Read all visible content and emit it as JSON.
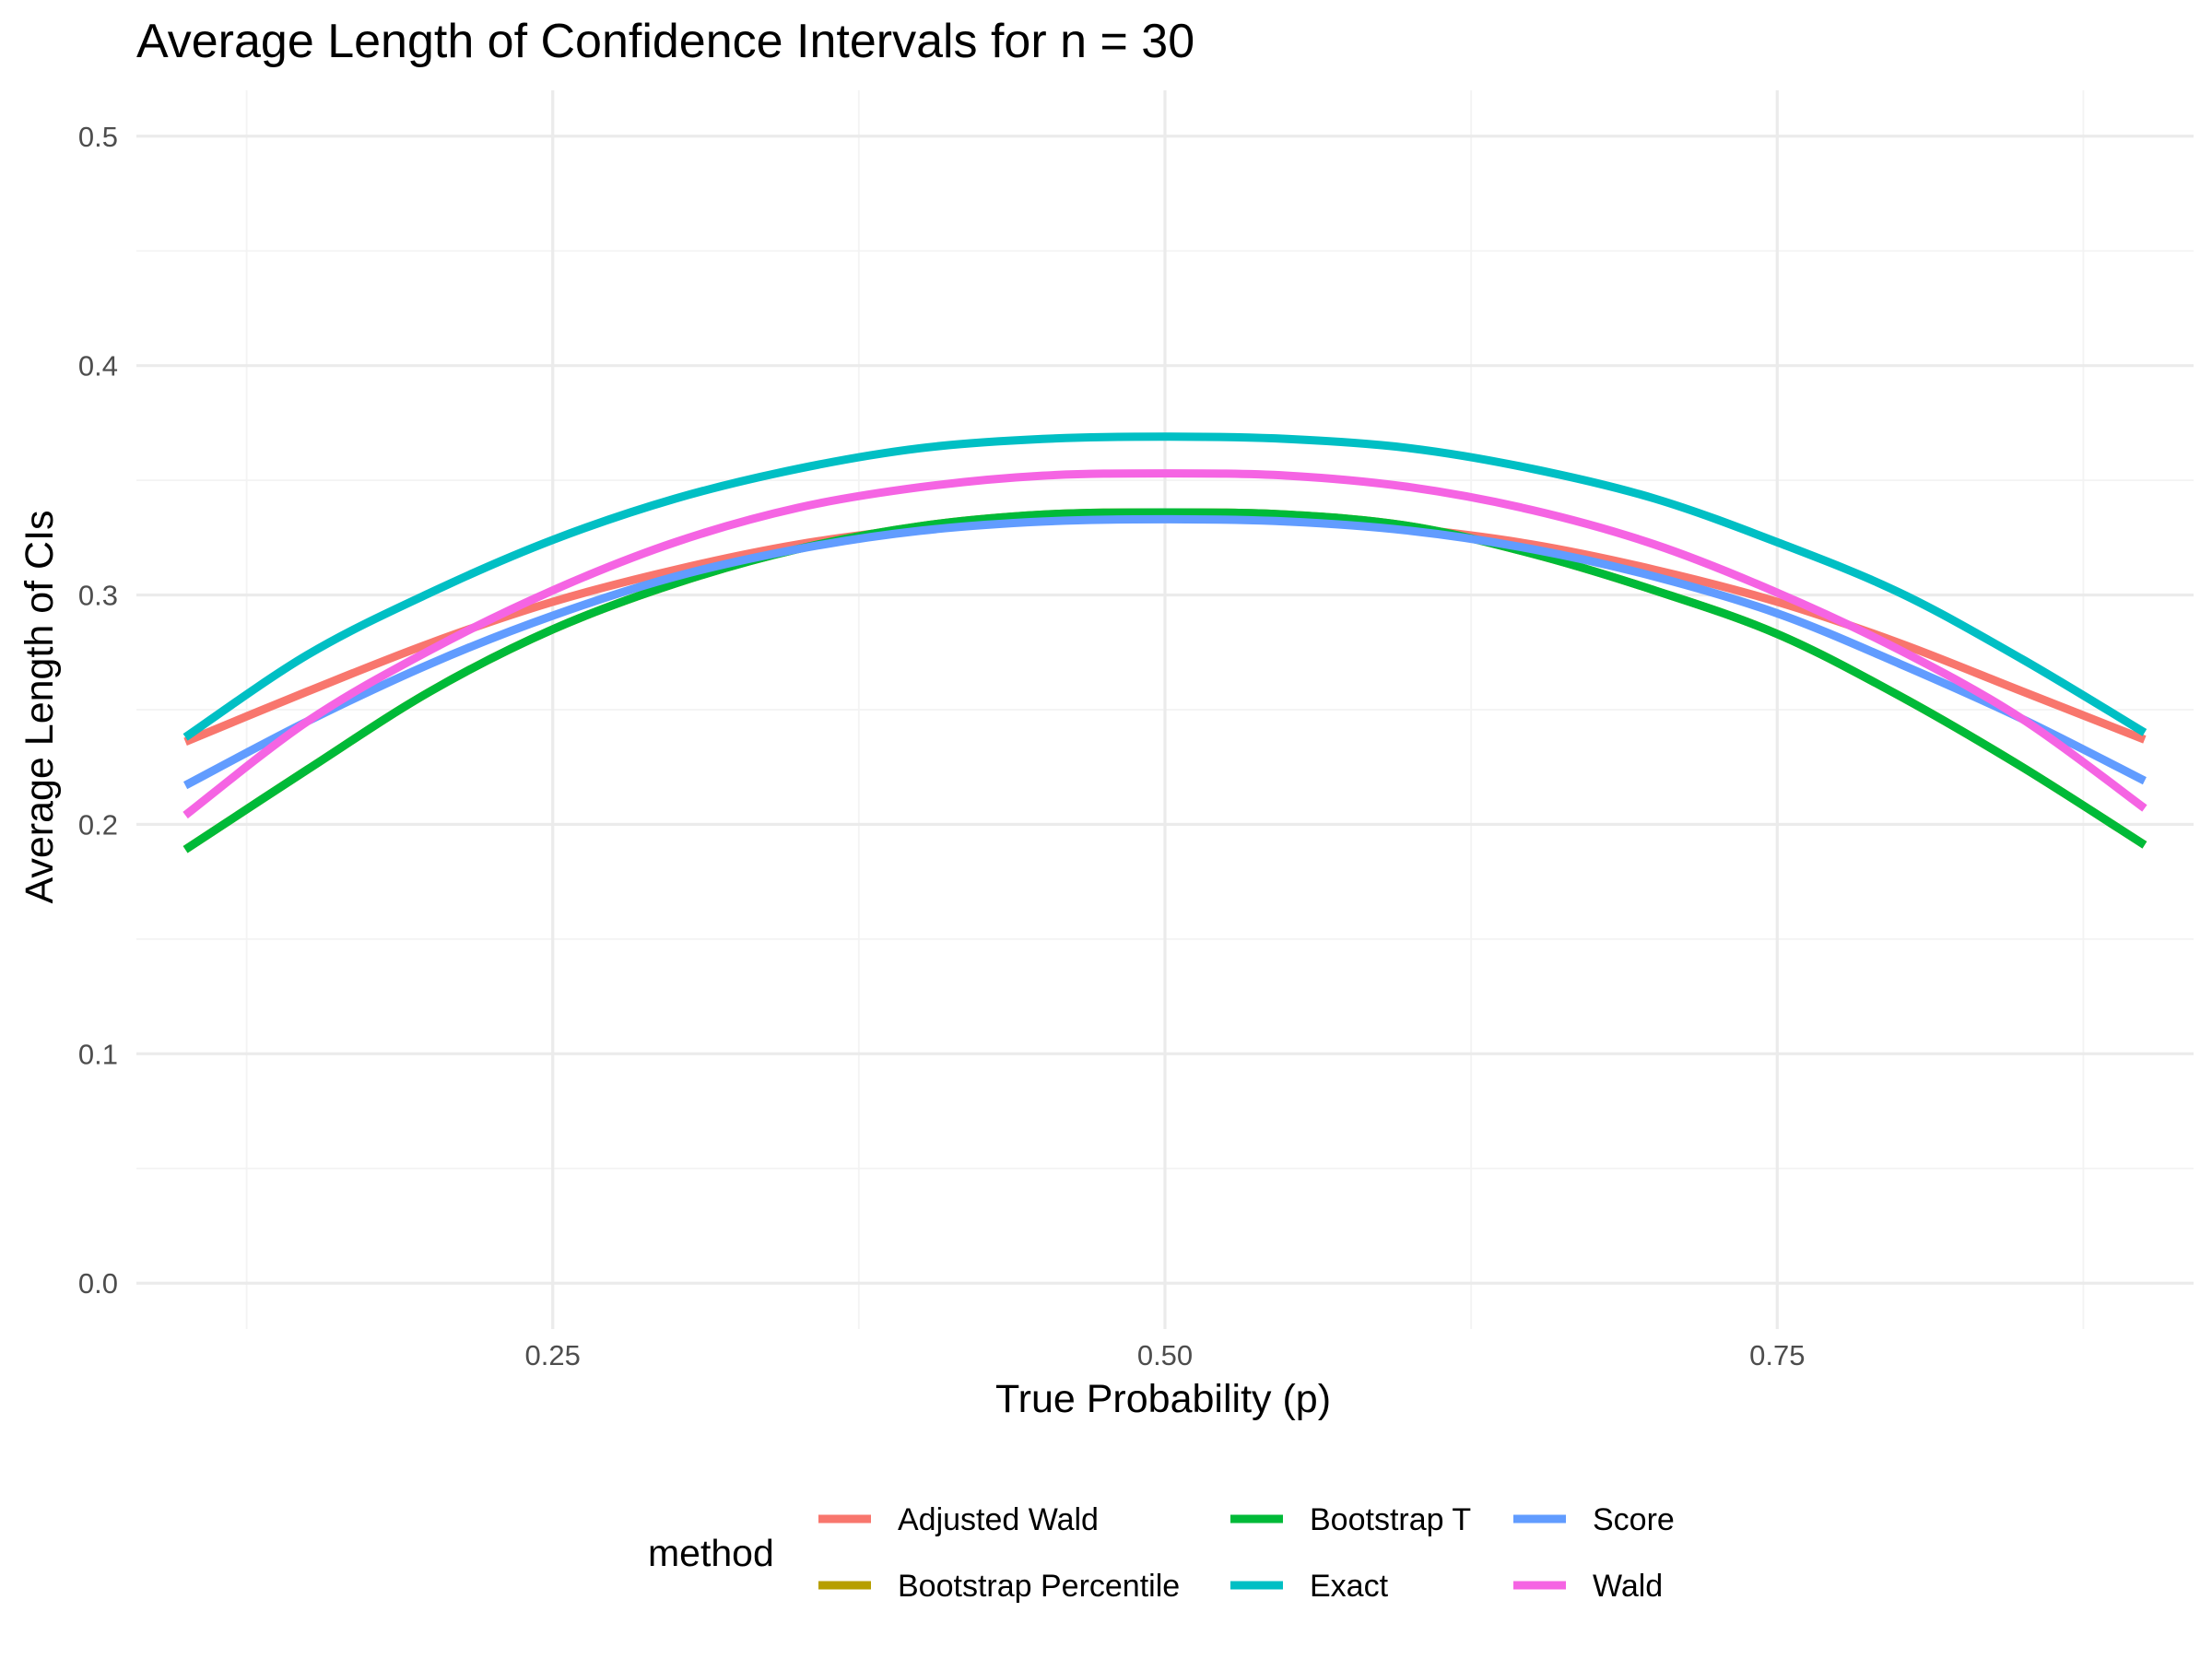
{
  "chart_data": {
    "type": "line",
    "title": "Average Length of Confidence Intervals for n = 30",
    "xlabel": "True Probability (p)",
    "ylabel": "Average Length of CIs",
    "xlim": [
      0.08,
      0.92
    ],
    "ylim": [
      -0.02,
      0.52
    ],
    "x_ticks": [
      0.25,
      0.5,
      0.75
    ],
    "x_tick_labels": [
      "0.25",
      "0.50",
      "0.75"
    ],
    "y_ticks": [
      0.0,
      0.1,
      0.2,
      0.3,
      0.4,
      0.5
    ],
    "y_tick_labels": [
      "0.0",
      "0.1",
      "0.2",
      "0.3",
      "0.4",
      "0.5"
    ],
    "grid": true,
    "legend_position": "bottom",
    "legend_title": "method",
    "x": [
      0.1,
      0.15,
      0.2,
      0.25,
      0.3,
      0.35,
      0.4,
      0.45,
      0.5,
      0.55,
      0.6,
      0.65,
      0.7,
      0.75,
      0.8,
      0.85,
      0.9
    ],
    "series": [
      {
        "name": "Adjusted Wald",
        "color": "#F8766D",
        "values": [
          0.236,
          0.258,
          0.279,
          0.297,
          0.311,
          0.322,
          0.329,
          0.333,
          0.334,
          0.333,
          0.329,
          0.322,
          0.311,
          0.297,
          0.279,
          0.258,
          0.237
        ]
      },
      {
        "name": "Bootstrap Percentile",
        "color": "#B79F00",
        "values": [
          0.189,
          0.224,
          0.258,
          0.285,
          0.305,
          0.32,
          0.33,
          0.335,
          0.336,
          0.335,
          0.33,
          0.318,
          0.302,
          0.283,
          0.256,
          0.225,
          0.191
        ]
      },
      {
        "name": "Bootstrap T",
        "color": "#00BA38",
        "values": [
          0.189,
          0.224,
          0.258,
          0.285,
          0.305,
          0.32,
          0.33,
          0.335,
          0.336,
          0.335,
          0.33,
          0.318,
          0.302,
          0.283,
          0.256,
          0.225,
          0.191
        ]
      },
      {
        "name": "Exact",
        "color": "#00BFC4",
        "values": [
          0.238,
          0.274,
          0.301,
          0.324,
          0.342,
          0.355,
          0.364,
          0.368,
          0.369,
          0.368,
          0.364,
          0.355,
          0.342,
          0.323,
          0.301,
          0.272,
          0.24
        ]
      },
      {
        "name": "Score",
        "color": "#619CFF",
        "values": [
          0.217,
          0.245,
          0.27,
          0.291,
          0.308,
          0.32,
          0.328,
          0.332,
          0.333,
          0.332,
          0.328,
          0.32,
          0.308,
          0.292,
          0.27,
          0.246,
          0.219
        ]
      },
      {
        "name": "Wald",
        "color": "#F564E3",
        "values": [
          0.204,
          0.245,
          0.276,
          0.302,
          0.323,
          0.338,
          0.347,
          0.352,
          0.353,
          0.352,
          0.347,
          0.337,
          0.322,
          0.301,
          0.276,
          0.246,
          0.207
        ]
      }
    ]
  }
}
